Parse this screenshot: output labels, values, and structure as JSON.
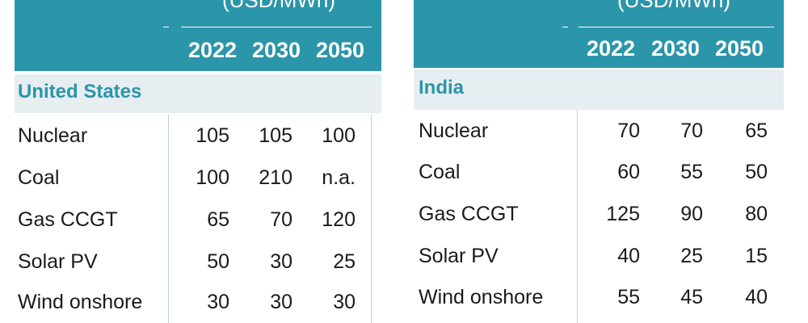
{
  "unit_label": "(USD/MWh)",
  "years": [
    "2022",
    "2030",
    "2050"
  ],
  "tables": [
    {
      "region": "United States",
      "rows": [
        {
          "tech": "Nuclear",
          "values": [
            "105",
            "105",
            "100"
          ]
        },
        {
          "tech": "Coal",
          "values": [
            "100",
            "210",
            "n.a."
          ]
        },
        {
          "tech": "Gas CCGT",
          "values": [
            "65",
            "70",
            "120"
          ]
        },
        {
          "tech": "Solar PV",
          "values": [
            "50",
            "30",
            "25"
          ]
        },
        {
          "tech": "Wind onshore",
          "values": [
            "30",
            "30",
            "30"
          ]
        }
      ]
    },
    {
      "region": "India",
      "rows": [
        {
          "tech": "Nuclear",
          "values": [
            "70",
            "70",
            "65"
          ]
        },
        {
          "tech": "Coal",
          "values": [
            "60",
            "55",
            "50"
          ]
        },
        {
          "tech": "Gas CCGT",
          "values": [
            "125",
            "90",
            "80"
          ]
        },
        {
          "tech": "Solar PV",
          "values": [
            "40",
            "25",
            "15"
          ]
        },
        {
          "tech": "Wind onshore",
          "values": [
            "55",
            "45",
            "40"
          ]
        }
      ]
    }
  ],
  "colors": {
    "header_bg": "#2b95a9",
    "region_bg": "#e6eef1",
    "region_text": "#2b95a9"
  }
}
